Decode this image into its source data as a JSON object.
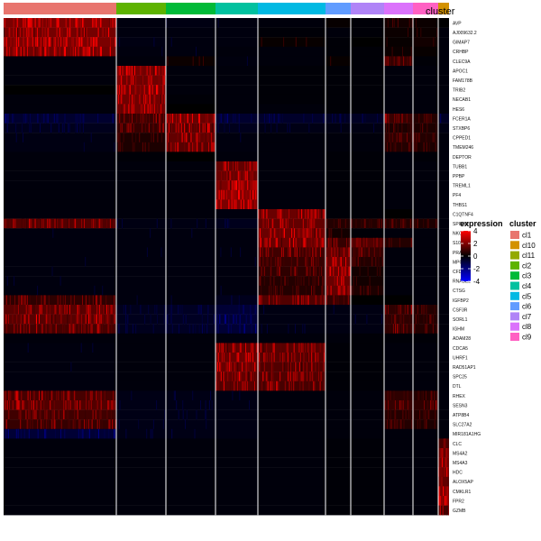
{
  "chart_data": {
    "type": "heatmap",
    "annotation_title": "cluster",
    "column_order": [
      "cl1",
      "cl2",
      "cl3",
      "cl4",
      "cl5",
      "cl6",
      "cl7",
      "cl8",
      "cl9",
      "cl10"
    ],
    "column_widths": [
      125,
      55,
      55,
      47,
      75,
      28,
      37,
      32,
      28,
      12
    ],
    "genes": [
      "AVP",
      "AJ009632.2",
      "GIMAP7",
      "CRHBP",
      "CLEC9A",
      "APOC1",
      "FAM178B",
      "TRIB2",
      "NECAB1",
      "HES6",
      "FCER1A",
      "STXBP6",
      "CPPED1",
      "TMEM246",
      "DEPTOR",
      "TUBB1",
      "PPBP",
      "TREML1",
      "PF4",
      "THBS1",
      "C1QTNF4",
      "SPINK2",
      "NKG7",
      "S100A11",
      "PRAM1",
      "MPO",
      "CFD",
      "RNASE2",
      "CTSG",
      "IGFBP2",
      "CSF3R",
      "SORL1",
      "IGHM",
      "ADAM28",
      "CDCA5",
      "UHRF1",
      "RAD51AP1",
      "SPC25",
      "DTL",
      "RHEX",
      "SESN3",
      "ATP8B4",
      "SLC27A2",
      "MIR181A1HG",
      "CLC",
      "MS4A2",
      "MS4A3",
      "HDC",
      "ALOX5AP",
      "CMKLR1",
      "FPR2",
      "GZMB"
    ],
    "mean_expression": [
      [
        3.5,
        -0.4,
        -0.5,
        -0.4,
        -0.3,
        0.2,
        -0.2,
        0.5,
        0.3,
        0
      ],
      [
        3.3,
        -0.4,
        -0.4,
        -0.4,
        -0.2,
        -0.3,
        -0.2,
        0.3,
        0.3,
        -0.3
      ],
      [
        3.5,
        -0.5,
        -0.4,
        -0.4,
        0.2,
        -0.2,
        0,
        0.2,
        0.5,
        -0.3
      ],
      [
        3.2,
        -0.4,
        -0.4,
        -0.3,
        -0.3,
        -0.2,
        -0.2,
        0.3,
        0.2,
        -0.3
      ],
      [
        -0.3,
        -0.3,
        0.3,
        -0.4,
        -0.3,
        0.2,
        -0.2,
        1.5,
        -0.2,
        -0.3
      ],
      [
        -0.3,
        3.3,
        -0.3,
        -0.3,
        -0.2,
        -0.2,
        -0.2,
        -0.3,
        -0.3,
        -0.3
      ],
      [
        -0.3,
        3.2,
        -0.3,
        -0.3,
        -0.2,
        -0.2,
        -0.2,
        -0.3,
        -0.3,
        -0.3
      ],
      [
        0,
        3.3,
        -0.3,
        -0.3,
        -0.2,
        -0.2,
        -0.2,
        -0.3,
        -0.3,
        -0.3
      ],
      [
        -0.3,
        3.2,
        -0.2,
        -0.3,
        -0.2,
        -0.2,
        -0.2,
        -0.3,
        -0.3,
        -0.3
      ],
      [
        -0.3,
        3.2,
        0,
        -0.3,
        -0.3,
        -0.2,
        -0.2,
        -0.3,
        -0.3,
        -0.3
      ],
      [
        -1.3,
        1.6,
        3,
        -1.3,
        -1.2,
        -1,
        -1,
        1.6,
        1,
        -1
      ],
      [
        -0.8,
        1.5,
        2.5,
        -0.8,
        -0.6,
        -0.5,
        -0.5,
        0.8,
        0.8,
        -0.5
      ],
      [
        -0.5,
        0.8,
        2.8,
        -0.4,
        -0.3,
        -0.3,
        -0.3,
        1.3,
        1,
        -0.3
      ],
      [
        -0.5,
        0.8,
        2.5,
        -0.4,
        -0.3,
        -0.3,
        -0.3,
        1,
        0.8,
        -0.3
      ],
      [
        -0.3,
        -0.2,
        0,
        -0.3,
        -0.3,
        -0.2,
        -0.2,
        -0.3,
        -0.2,
        -0.3
      ],
      [
        -0.3,
        -0.3,
        -0.3,
        2.8,
        -0.3,
        -0.2,
        -0.2,
        -0.3,
        -0.3,
        -0.3
      ],
      [
        -0.3,
        -0.3,
        -0.3,
        3,
        -0.3,
        -0.2,
        -0.2,
        -0.3,
        -0.3,
        -0.3
      ],
      [
        -0.3,
        -0.3,
        -0.3,
        3.5,
        -0.3,
        -0.2,
        -0.2,
        -0.3,
        -0.3,
        -0.3
      ],
      [
        -0.3,
        -0.3,
        -0.3,
        3.8,
        -0.3,
        -0.2,
        -0.2,
        -0.3,
        -0.3,
        -0.3
      ],
      [
        -0.3,
        -0.3,
        -0.3,
        3.5,
        -0.3,
        -0.2,
        -0.2,
        -0.3,
        -0.3,
        -0.3
      ],
      [
        -0.3,
        -0.3,
        -0.3,
        -0.4,
        3,
        -0.2,
        -0.2,
        0,
        -0.3,
        -0.3
      ],
      [
        2.3,
        -0.5,
        -0.5,
        -0.8,
        2.8,
        1,
        1,
        1,
        0.8,
        -0.3
      ],
      [
        -0.4,
        -0.4,
        -0.4,
        -0.4,
        3,
        0.5,
        -0.2,
        -0.3,
        -0.3,
        -0.3
      ],
      [
        -0.4,
        -0.4,
        -0.4,
        -0.4,
        3,
        1.5,
        2.3,
        1,
        -0.3,
        -0.3
      ],
      [
        -0.4,
        -0.4,
        -0.4,
        -0.4,
        1.8,
        2.8,
        1.5,
        -0.3,
        -0.3,
        -0.3
      ],
      [
        -0.4,
        -0.4,
        -0.4,
        -0.4,
        1.5,
        3,
        1,
        -0.3,
        -0.3,
        -0.3
      ],
      [
        -0.4,
        -0.4,
        -0.4,
        -0.4,
        1.3,
        3,
        0.5,
        -0.3,
        -0.3,
        -0.3
      ],
      [
        -0.4,
        -0.4,
        -0.4,
        -0.4,
        1,
        3,
        0.5,
        -0.3,
        -0.3,
        -0.3
      ],
      [
        -0.4,
        -0.4,
        -0.4,
        -0.4,
        1,
        2.8,
        0.8,
        -0.3,
        -0.3,
        -0.3
      ],
      [
        1.3,
        -0.4,
        -0.4,
        -0.8,
        2.3,
        1.5,
        0,
        0,
        -0.3,
        -0.3
      ],
      [
        2.5,
        -0.8,
        -1,
        -1.5,
        -0.5,
        -0.5,
        -0.5,
        1.3,
        1,
        -0.3
      ],
      [
        2.5,
        -0.8,
        -1,
        -1.5,
        -0.5,
        -0.5,
        -0.5,
        1.3,
        1,
        -0.3
      ],
      [
        2,
        -0.8,
        -1,
        -1.5,
        -0.5,
        -0.5,
        -0.5,
        1.3,
        1,
        -0.3
      ],
      [
        -0.3,
        -0.3,
        -0.3,
        -0.4,
        -0.3,
        -0.3,
        -0.2,
        -0.2,
        -0.2,
        -0.3
      ],
      [
        -0.4,
        -0.3,
        -0.3,
        2.8,
        2.5,
        -0.2,
        -0.2,
        -0.3,
        -0.3,
        -0.3
      ],
      [
        -0.4,
        -0.3,
        -0.3,
        3,
        2.5,
        -0.2,
        -0.2,
        -0.3,
        -0.3,
        -0.3
      ],
      [
        -0.4,
        -0.3,
        -0.3,
        3,
        2.3,
        -0.2,
        -0.2,
        -0.3,
        -0.3,
        -0.3
      ],
      [
        -0.4,
        -0.3,
        -0.3,
        2.8,
        2.3,
        -0.2,
        -0.2,
        -0.3,
        -0.3,
        -0.3
      ],
      [
        -0.4,
        -0.3,
        -0.3,
        2.5,
        2,
        -0.2,
        -0.2,
        -0.3,
        -0.3,
        -0.3
      ],
      [
        2,
        -0.6,
        -0.6,
        -0.5,
        -0.3,
        -0.3,
        -0.3,
        1.3,
        1,
        -0.3
      ],
      [
        2.3,
        -0.6,
        -0.6,
        -0.5,
        -0.3,
        -0.3,
        -0.3,
        1.5,
        1.3,
        -0.3
      ],
      [
        1.8,
        -0.6,
        -0.6,
        -0.5,
        -0.3,
        -0.3,
        -0.3,
        1,
        1,
        -0.3
      ],
      [
        1.5,
        -0.6,
        -0.6,
        -0.5,
        -0.3,
        -0.3,
        -0.3,
        1,
        0.8,
        -0.3
      ],
      [
        -1.5,
        -0.6,
        -0.6,
        -0.5,
        -0.3,
        -0.3,
        -0.3,
        -0.3,
        -0.3,
        -0.3
      ],
      [
        -0.3,
        -0.3,
        -0.3,
        -0.3,
        -0.3,
        -0.2,
        -0.2,
        -0.3,
        -0.3,
        2
      ],
      [
        -0.3,
        -0.3,
        -0.3,
        -0.3,
        -0.3,
        -0.2,
        -0.2,
        -0.3,
        -0.3,
        2.8
      ],
      [
        -0.3,
        -0.3,
        -0.3,
        -0.3,
        -0.3,
        -0.2,
        -0.2,
        -0.3,
        -0.3,
        3.3
      ],
      [
        -0.3,
        -0.3,
        -0.3,
        -0.3,
        -0.3,
        -0.2,
        -0.2,
        -0.3,
        -0.3,
        3.5
      ],
      [
        -0.3,
        -0.3,
        -0.3,
        -0.3,
        -0.3,
        -0.2,
        -0.2,
        -0.3,
        -0.3,
        2.8
      ],
      [
        -0.3,
        -0.3,
        -0.3,
        -0.3,
        -0.3,
        -0.2,
        -0.2,
        -0.3,
        -0.3,
        3.8
      ],
      [
        -0.3,
        -0.3,
        -0.3,
        -0.3,
        -0.3,
        -0.2,
        -0.2,
        -0.3,
        -0.3,
        4
      ],
      [
        -0.3,
        -0.3,
        -0.3,
        -0.3,
        -0.3,
        -0.2,
        -0.2,
        -0.3,
        -0.3,
        2
      ]
    ],
    "color_scale": {
      "title": "expression",
      "ticks": [
        "4",
        "2",
        "0",
        "-2",
        "-4"
      ],
      "range": [
        -4,
        4
      ],
      "low_color": "#0000ff",
      "mid_color": "#000000",
      "high_color": "#ff0000"
    },
    "cluster_legend": {
      "title": "cluster",
      "entries": [
        {
          "label": "cl1",
          "color": "#e8756e"
        },
        {
          "label": "cl10",
          "color": "#d39200"
        },
        {
          "label": "cl11",
          "color": "#93aa00"
        },
        {
          "label": "cl2",
          "color": "#5eb300"
        },
        {
          "label": "cl3",
          "color": "#00ba38"
        },
        {
          "label": "cl4",
          "color": "#00c19f"
        },
        {
          "label": "cl5",
          "color": "#00b9e3"
        },
        {
          "label": "cl6",
          "color": "#619cff"
        },
        {
          "label": "cl7",
          "color": "#b084f7"
        },
        {
          "label": "cl8",
          "color": "#db72fb"
        },
        {
          "label": "cl9",
          "color": "#ff61c3"
        }
      ]
    }
  }
}
